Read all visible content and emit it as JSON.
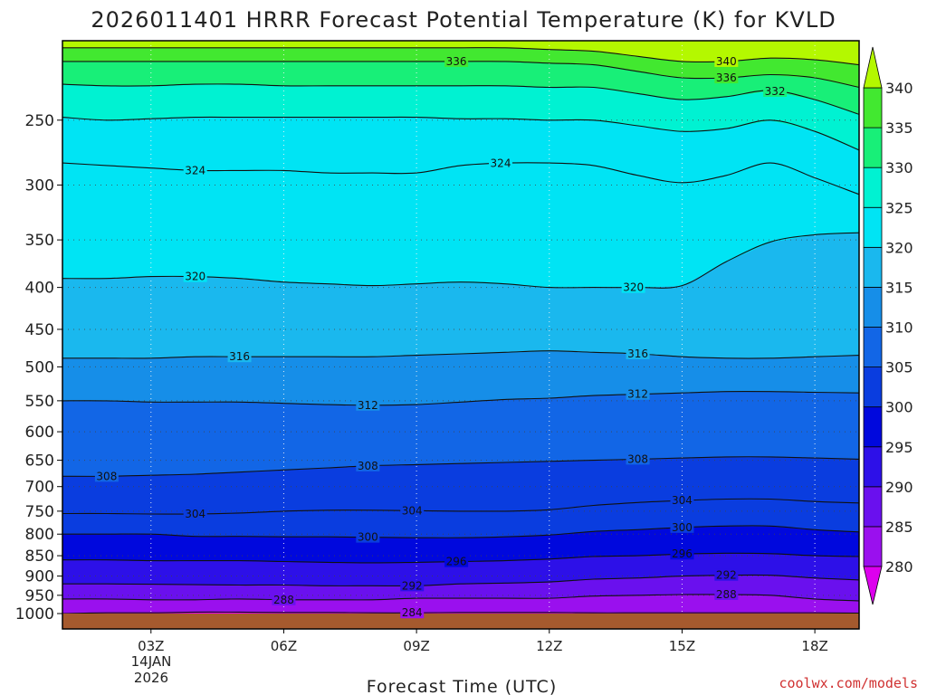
{
  "chart_data": {
    "type": "heatmap",
    "title": "2026011401 HRRR Forecast Potential Temperature (K) for KVLD",
    "xlabel": "Forecast Time (UTC)",
    "ylabel": "",
    "credit": "coolwx.com/models",
    "x_hours": [
      1,
      19
    ],
    "x_ticks": [
      {
        "hour": 3,
        "label": "03Z"
      },
      {
        "hour": 6,
        "label": "06Z"
      },
      {
        "hour": 9,
        "label": "09Z"
      },
      {
        "hour": 12,
        "label": "12Z"
      },
      {
        "hour": 15,
        "label": "15Z"
      },
      {
        "hour": 18,
        "label": "18Z"
      }
    ],
    "date_label": [
      "14JAN",
      "2026"
    ],
    "y_axis": {
      "type": "log-pressure",
      "top_hpa": 200,
      "bottom_hpa": 1000
    },
    "y_ticks": [
      250,
      300,
      350,
      400,
      450,
      500,
      550,
      600,
      650,
      700,
      750,
      800,
      850,
      900,
      950,
      1000
    ],
    "colorbar": {
      "levels": [
        280,
        285,
        290,
        295,
        300,
        305,
        310,
        315,
        320,
        325,
        330,
        335,
        340
      ],
      "colors": [
        "#dd00ee",
        "#9a10ee",
        "#6a10ee",
        "#2d10e8",
        "#0008dd",
        "#0a3ddf",
        "#1266e6",
        "#168ee8",
        "#1ab8ee",
        "#00e4f4",
        "#00f2d2",
        "#18ef78",
        "#42e830",
        "#b4f800"
      ],
      "extend": "both"
    },
    "isentropes": [
      {
        "theta": 284,
        "pressures": [
          1000,
          998,
          998,
          996,
          996,
          997,
          997,
          998,
          998,
          997,
          997,
          997,
          998,
          998,
          998,
          998,
          998,
          998,
          999
        ]
      },
      {
        "theta": 288,
        "pressures": [
          960,
          960,
          962,
          962,
          960,
          962,
          962,
          962,
          958,
          958,
          958,
          958,
          952,
          950,
          948,
          948,
          950,
          960,
          965
        ]
      },
      {
        "theta": 292,
        "pressures": [
          920,
          920,
          921,
          922,
          923,
          923,
          925,
          925,
          925,
          920,
          918,
          915,
          908,
          905,
          900,
          898,
          898,
          905,
          910
        ]
      },
      {
        "theta": 296,
        "pressures": [
          860,
          860,
          862,
          862,
          862,
          864,
          866,
          867,
          866,
          864,
          862,
          858,
          852,
          850,
          846,
          844,
          845,
          850,
          852
        ]
      },
      {
        "theta": 300,
        "pressures": [
          800,
          800,
          800,
          805,
          805,
          806,
          806,
          807,
          808,
          808,
          806,
          802,
          794,
          790,
          785,
          782,
          782,
          790,
          795
        ]
      },
      {
        "theta": 304,
        "pressures": [
          755,
          755,
          756,
          756,
          754,
          750,
          748,
          748,
          749,
          750,
          750,
          747,
          738,
          732,
          728,
          725,
          725,
          730,
          733
        ]
      },
      {
        "theta": 308,
        "pressures": [
          680,
          680,
          678,
          676,
          672,
          668,
          664,
          660,
          658,
          656,
          654,
          652,
          650,
          648,
          646,
          644,
          644,
          646,
          648
        ]
      },
      {
        "theta": 312,
        "pressures": [
          550,
          550,
          552,
          552,
          552,
          554,
          556,
          557,
          556,
          552,
          548,
          546,
          542,
          540,
          538,
          536,
          536,
          537,
          538
        ]
      },
      {
        "theta": 316,
        "pressures": [
          488,
          488,
          488,
          486,
          486,
          486,
          486,
          486,
          484,
          482,
          480,
          478,
          480,
          482,
          486,
          488,
          488,
          486,
          484
        ]
      },
      {
        "theta": 320,
        "pressures": [
          390,
          390,
          388,
          388,
          390,
          394,
          396,
          398,
          396,
          394,
          396,
          400,
          400,
          400,
          398,
          372,
          352,
          345,
          343
        ]
      },
      {
        "theta": 324,
        "pressures": [
          282,
          284,
          286,
          288,
          288,
          288,
          290,
          290,
          290,
          284,
          282,
          282,
          284,
          292,
          298,
          292,
          282,
          294,
          308
        ]
      },
      {
        "theta": 328,
        "pressures": [
          248,
          250,
          249,
          248,
          248,
          248,
          248,
          248,
          248,
          249,
          249,
          250,
          250,
          254,
          258,
          256,
          250,
          258,
          272
        ]
      },
      {
        "theta": 332,
        "pressures": [
          226,
          227,
          227,
          226,
          226,
          227,
          227,
          227,
          227,
          227,
          227,
          228,
          228,
          232,
          236,
          234,
          230,
          236,
          246
        ]
      },
      {
        "theta": 336,
        "pressures": [
          212,
          212,
          212,
          212,
          212,
          212,
          212,
          212,
          212,
          212,
          212,
          213,
          214,
          218,
          222,
          222,
          220,
          222,
          228
        ]
      },
      {
        "theta": 340,
        "pressures": [
          204,
          204,
          204,
          204,
          204,
          204,
          204,
          204,
          204,
          204,
          204,
          205,
          206,
          209,
          212,
          212,
          210,
          211,
          214
        ]
      }
    ],
    "contour_labels": [
      {
        "theta": 336,
        "hour": 9.9
      },
      {
        "theta": 340,
        "hour": 16.0
      },
      {
        "theta": 336,
        "hour": 16.0
      },
      {
        "theta": 332,
        "hour": 17.1
      },
      {
        "theta": 324,
        "hour": 4.0
      },
      {
        "theta": 324,
        "hour": 10.9
      },
      {
        "theta": 320,
        "hour": 4.0
      },
      {
        "theta": 320,
        "hour": 13.9
      },
      {
        "theta": 316,
        "hour": 5.0
      },
      {
        "theta": 316,
        "hour": 14.0
      },
      {
        "theta": 312,
        "hour": 7.9
      },
      {
        "theta": 312,
        "hour": 14.0
      },
      {
        "theta": 308,
        "hour": 2.0
      },
      {
        "theta": 308,
        "hour": 7.9
      },
      {
        "theta": 308,
        "hour": 14.0
      },
      {
        "theta": 304,
        "hour": 4.0
      },
      {
        "theta": 304,
        "hour": 8.9
      },
      {
        "theta": 304,
        "hour": 15.0
      },
      {
        "theta": 300,
        "hour": 7.9
      },
      {
        "theta": 300,
        "hour": 15.0
      },
      {
        "theta": 296,
        "hour": 9.9
      },
      {
        "theta": 296,
        "hour": 15.0
      },
      {
        "theta": 292,
        "hour": 8.9
      },
      {
        "theta": 292,
        "hour": 16.0
      },
      {
        "theta": 288,
        "hour": 6.0
      },
      {
        "theta": 288,
        "hour": 16.0
      },
      {
        "theta": 284,
        "hour": 8.9
      }
    ]
  }
}
